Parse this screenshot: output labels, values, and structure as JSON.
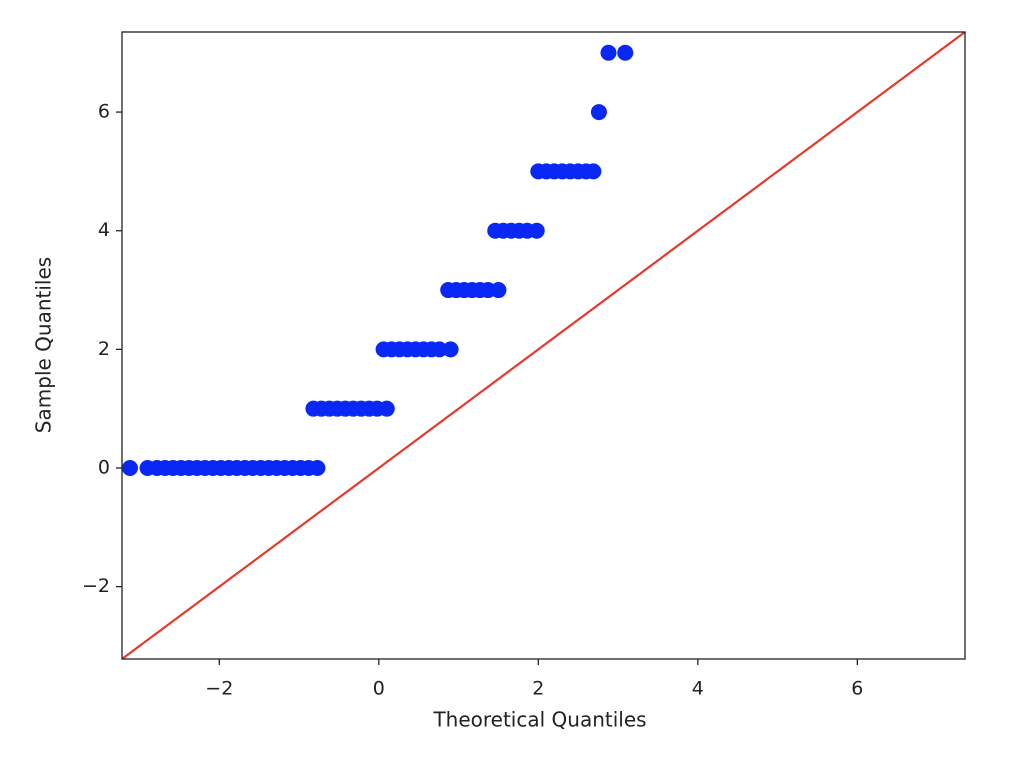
{
  "chart_data": {
    "type": "scatter",
    "xlabel": "Theoretical Quantiles",
    "ylabel": "Sample Quantiles",
    "xlim": [
      -3.22,
      7.35
    ],
    "ylim": [
      -3.22,
      7.35
    ],
    "xticks": [
      {
        "value": -2,
        "label": "−2"
      },
      0,
      2,
      4,
      6
    ],
    "yticks": [
      {
        "value": -2,
        "label": "−2"
      },
      0,
      2,
      4,
      6
    ],
    "series": [
      {
        "style": "markers",
        "color": "#0a28f5",
        "x": [
          -3.12,
          -2.9,
          -2.78,
          -2.68,
          -2.58,
          -2.48,
          -2.38,
          -2.28,
          -2.18,
          -2.08,
          -1.98,
          -1.88,
          -1.78,
          -1.68,
          -1.58,
          -1.48,
          -1.38,
          -1.28,
          -1.18,
          -1.08,
          -0.98,
          -0.88,
          -0.77,
          -0.82,
          -0.72,
          -0.62,
          -0.52,
          -0.42,
          -0.32,
          -0.22,
          -0.12,
          -0.02,
          0.1,
          0.06,
          0.16,
          0.26,
          0.36,
          0.46,
          0.56,
          0.66,
          0.76,
          0.9,
          0.87,
          0.97,
          1.07,
          1.17,
          1.27,
          1.37,
          1.5,
          1.46,
          1.56,
          1.66,
          1.76,
          1.86,
          1.98,
          2.0,
          2.1,
          2.2,
          2.3,
          2.4,
          2.5,
          2.6,
          2.69,
          2.76,
          2.88,
          3.09
        ],
        "values": [
          0,
          0,
          0,
          0,
          0,
          0,
          0,
          0,
          0,
          0,
          0,
          0,
          0,
          0,
          0,
          0,
          0,
          0,
          0,
          0,
          0,
          0,
          0,
          1,
          1,
          1,
          1,
          1,
          1,
          1,
          1,
          1,
          1,
          2,
          2,
          2,
          2,
          2,
          2,
          2,
          2,
          2,
          3,
          3,
          3,
          3,
          3,
          3,
          3,
          4,
          4,
          4,
          4,
          4,
          4,
          5,
          5,
          5,
          5,
          5,
          5,
          5,
          5,
          6,
          7,
          7
        ]
      },
      {
        "style": "line",
        "color": "#e8392c",
        "x": [
          -3.22,
          7.35
        ],
        "values": [
          -3.22,
          7.35
        ]
      }
    ]
  }
}
